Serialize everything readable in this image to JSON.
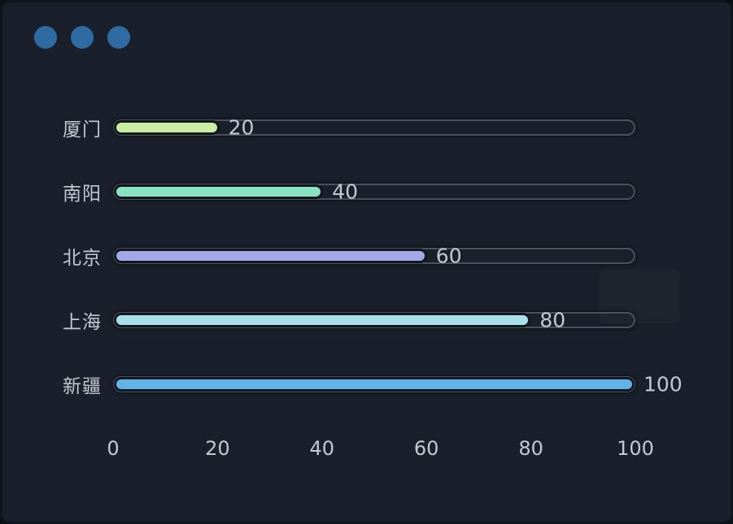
{
  "window": {
    "background": "#1a202b",
    "control_dot_color": "#2e6ba3",
    "controls": [
      {
        "name": "window-dot-1"
      },
      {
        "name": "window-dot-2"
      },
      {
        "name": "window-dot-3"
      }
    ]
  },
  "chart_data": {
    "type": "bar",
    "orientation": "horizontal",
    "title": "",
    "xlabel": "",
    "ylabel": "",
    "categories": [
      "厦门",
      "南阳",
      "北京",
      "上海",
      "新疆"
    ],
    "values": [
      20,
      40,
      60,
      80,
      100
    ],
    "value_labels": [
      "20",
      "40",
      "60",
      "80",
      "100"
    ],
    "bar_colors": [
      "#c9eda3",
      "#8ae3c0",
      "#a2a9e8",
      "#a9dfe8",
      "#63b4e6"
    ],
    "track_max": 100,
    "xlim": [
      0,
      100
    ],
    "x_ticks": [
      "0",
      "20",
      "40",
      "60",
      "80",
      "100"
    ],
    "grid": false,
    "legend": false,
    "text_color": "#c5c7d1",
    "track_border_color": "#4a505c"
  }
}
